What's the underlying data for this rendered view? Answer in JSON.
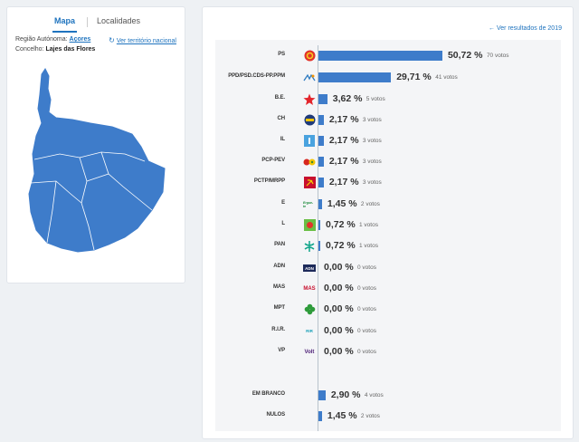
{
  "tabs": {
    "mapa": "Mapa",
    "localidades": "Localidades"
  },
  "region": {
    "label1": "Região Autónoma: ",
    "value1": "Açores",
    "label2": "Concelho: ",
    "value2": "Lajes das Flores",
    "ver_territorio": "Ver território nacional"
  },
  "ver_2019": "← Ver resultados de 2019",
  "colors": {
    "bar": "#3e7cca",
    "link": "#1e73be",
    "map": "#3e7cca"
  },
  "parties": [
    {
      "name": "PS",
      "pct": "50,72 %",
      "pct_value": 50.72,
      "votes": "70 votos",
      "logo": "ps-logo"
    },
    {
      "name": "PPD/PSD.CDS-PP.PPM",
      "pct": "29,71 %",
      "pct_value": 29.71,
      "votes": "41 votos",
      "logo": "ppd-psd-logo"
    },
    {
      "name": "B.E.",
      "pct": "3,62 %",
      "pct_value": 3.62,
      "votes": "5 votos",
      "logo": "be-star-logo"
    },
    {
      "name": "CH",
      "pct": "2,17 %",
      "pct_value": 2.17,
      "votes": "3 votos",
      "logo": "chega-logo"
    },
    {
      "name": "IL",
      "pct": "2,17 %",
      "pct_value": 2.17,
      "votes": "3 votos",
      "logo": "il-logo"
    },
    {
      "name": "PCP-PEV",
      "pct": "2,17 %",
      "pct_value": 2.17,
      "votes": "3 votos",
      "logo": "pcp-pev-logo"
    },
    {
      "name": "PCTP/MRPP",
      "pct": "2,17 %",
      "pct_value": 2.17,
      "votes": "3 votos",
      "logo": "pctp-logo"
    },
    {
      "name": "E",
      "pct": "1,45 %",
      "pct_value": 1.45,
      "votes": "2 votos",
      "logo": "ergue-te-logo"
    },
    {
      "name": "L",
      "pct": "0,72 %",
      "pct_value": 0.72,
      "votes": "1 votos",
      "logo": "livre-logo"
    },
    {
      "name": "PAN",
      "pct": "0,72 %",
      "pct_value": 0.72,
      "votes": "1 votos",
      "logo": "pan-logo"
    },
    {
      "name": "ADN",
      "pct": "0,00 %",
      "pct_value": 0,
      "votes": "0 votos",
      "logo": "adn-logo"
    },
    {
      "name": "MAS",
      "pct": "0,00 %",
      "pct_value": 0,
      "votes": "0 votos",
      "logo": "mas-logo"
    },
    {
      "name": "MPT",
      "pct": "0,00 %",
      "pct_value": 0,
      "votes": "0 votos",
      "logo": "mpt-clover-logo"
    },
    {
      "name": "R.I.R.",
      "pct": "0,00 %",
      "pct_value": 0,
      "votes": "0 votos",
      "logo": "rir-logo"
    },
    {
      "name": "VP",
      "pct": "0,00 %",
      "pct_value": 0,
      "votes": "0 votos",
      "logo": "volt-logo"
    }
  ],
  "special": [
    {
      "name": "EM BRANCO",
      "pct": "2,90 %",
      "pct_value": 2.9,
      "votes": "4 votos"
    },
    {
      "name": "NULOS",
      "pct": "1,45 %",
      "pct_value": 1.45,
      "votes": "2 votos"
    }
  ],
  "logo_text": {
    "adn": "ADN",
    "mas": "MAS",
    "volt": "Volt",
    "rir": "RIR",
    "e": "Ergue-te"
  }
}
